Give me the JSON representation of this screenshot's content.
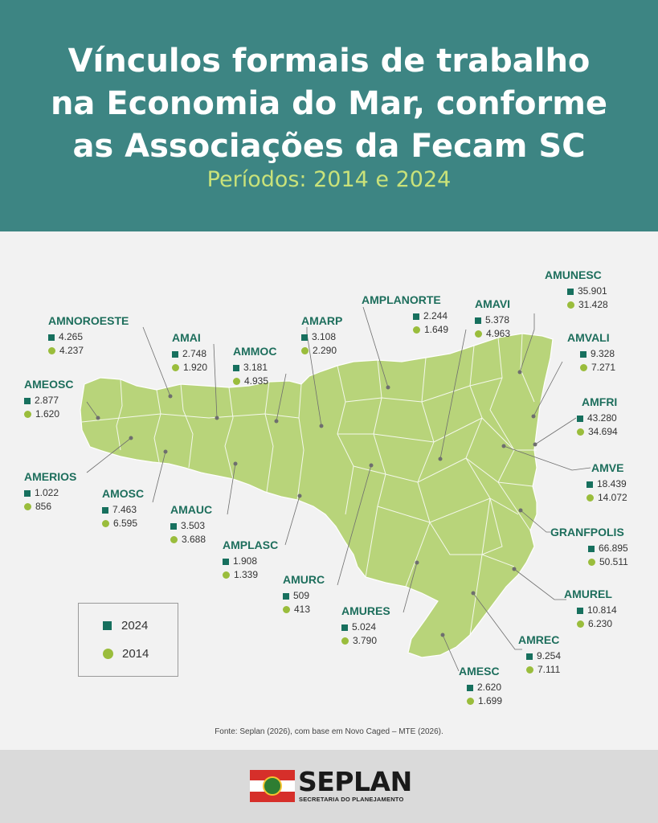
{
  "title": {
    "line1": "Vínculos formais de trabalho",
    "line2": "na Economia do Mar, conforme",
    "line3": "as Associações da Fecam SC"
  },
  "subtitle": "Períodos: 2014 e 2024",
  "legend": {
    "y2024": "2024",
    "y2014": "2014"
  },
  "colors": {
    "header": "#3d8583",
    "map": "#b8d47a",
    "square_2024": "#17705e",
    "circle_2014": "#9abd3c",
    "name": "#1d6e5c"
  },
  "associations": [
    {
      "name": "AMNOROESTE",
      "v2024": "4.265",
      "v2014": "4.237"
    },
    {
      "name": "AMAI",
      "v2024": "2.748",
      "v2014": "1.920"
    },
    {
      "name": "AMMOC",
      "v2024": "3.181",
      "v2014": "4.935"
    },
    {
      "name": "AMARP",
      "v2024": "3.108",
      "v2014": "2.290"
    },
    {
      "name": "AMPLANORTE",
      "v2024": "2.244",
      "v2014": "1.649"
    },
    {
      "name": "AMAVI",
      "v2024": "5.378",
      "v2014": "4.963"
    },
    {
      "name": "AMUNESC",
      "v2024": "35.901",
      "v2014": "31.428"
    },
    {
      "name": "AMVALI",
      "v2024": "9.328",
      "v2014": "7.271"
    },
    {
      "name": "AMFRI",
      "v2024": "43.280",
      "v2014": "34.694"
    },
    {
      "name": "AMVE",
      "v2024": "18.439",
      "v2014": "14.072"
    },
    {
      "name": "GRANFPOLIS",
      "v2024": "66.895",
      "v2014": "50.511"
    },
    {
      "name": "AMUREL",
      "v2024": "10.814",
      "v2014": "6.230"
    },
    {
      "name": "AMREC",
      "v2024": "9.254",
      "v2014": "7.111"
    },
    {
      "name": "AMESC",
      "v2024": "2.620",
      "v2014": "1.699"
    },
    {
      "name": "AMURES",
      "v2024": "5.024",
      "v2014": "3.790"
    },
    {
      "name": "AMURC",
      "v2024": "509",
      "v2014": "413"
    },
    {
      "name": "AMPLASC",
      "v2024": "1.908",
      "v2014": "1.339"
    },
    {
      "name": "AMAUC",
      "v2024": "3.503",
      "v2014": "3.688"
    },
    {
      "name": "AMOSC",
      "v2024": "7.463",
      "v2014": "6.595"
    },
    {
      "name": "AMERIOS",
      "v2024": "1.022",
      "v2014": "856"
    },
    {
      "name": "AMEOSC",
      "v2024": "2.877",
      "v2014": "1.620"
    }
  ],
  "source": "Fonte: Seplan (2026), com base em Novo Caged – MTE (2026).",
  "footer": {
    "brand": "SEPLAN",
    "brand_sub": "SECRETARIA DO PLANEJAMENTO"
  }
}
